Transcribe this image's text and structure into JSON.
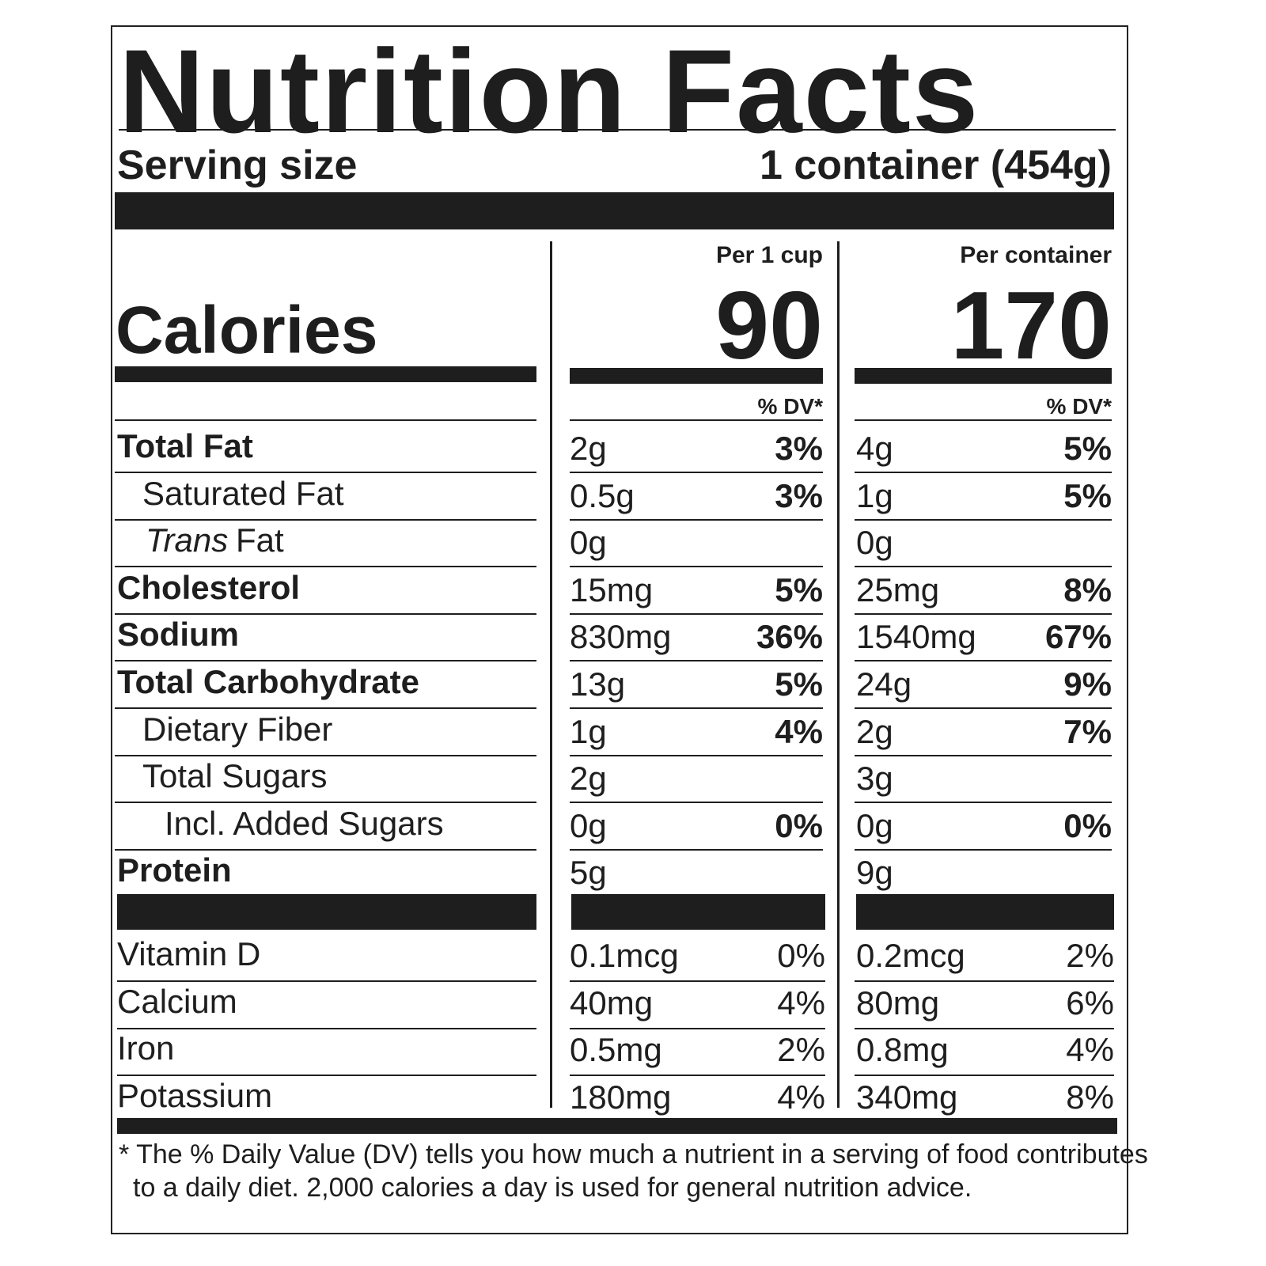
{
  "title": "Nutrition Facts",
  "serving": {
    "label": "Serving size",
    "value": "1 container (454g)"
  },
  "calories_label": "Calories",
  "columns": [
    {
      "header": "Per 1 cup",
      "calories": 90,
      "dv_header": "% DV*"
    },
    {
      "header": "Per container",
      "calories": 170,
      "dv_header": "% DV*"
    }
  ],
  "nutrients": [
    {
      "label": "Total Fat",
      "bold": true,
      "indent": 0,
      "values": [
        [
          "2g",
          "3%"
        ],
        [
          "4g",
          "5%"
        ]
      ]
    },
    {
      "label": "Saturated Fat",
      "bold": false,
      "indent": 1,
      "values": [
        [
          "0.5g",
          "3%"
        ],
        [
          "1g",
          "5%"
        ]
      ]
    },
    {
      "label": {
        "italic": "Trans",
        "text": "Fat"
      },
      "bold": false,
      "indent": 1,
      "values": [
        [
          "0g",
          null
        ],
        [
          "0g",
          null
        ]
      ]
    },
    {
      "label": "Cholesterol",
      "bold": true,
      "indent": 0,
      "values": [
        [
          "15mg",
          "5%"
        ],
        [
          "25mg",
          "8%"
        ]
      ]
    },
    {
      "label": "Sodium",
      "bold": true,
      "indent": 0,
      "values": [
        [
          "830mg",
          "36%"
        ],
        [
          "1540mg",
          "67%"
        ]
      ]
    },
    {
      "label": "Total Carbohydrate",
      "bold": true,
      "indent": 0,
      "values": [
        [
          "13g",
          "5%"
        ],
        [
          "24g",
          "9%"
        ]
      ]
    },
    {
      "label": "Dietary Fiber",
      "bold": false,
      "indent": 1,
      "values": [
        [
          "1g",
          "4%"
        ],
        [
          "2g",
          "7%"
        ]
      ]
    },
    {
      "label": "Total Sugars",
      "bold": false,
      "indent": 1,
      "values": [
        [
          "2g",
          null
        ],
        [
          "3g",
          null
        ]
      ]
    },
    {
      "label": "Incl. Added Sugars",
      "bold": false,
      "indent": 2,
      "values": [
        [
          "0g",
          "0%"
        ],
        [
          "0g",
          "0%"
        ]
      ]
    },
    {
      "label": "Protein",
      "bold": true,
      "indent": 0,
      "values": [
        [
          "5g",
          null
        ],
        [
          "9g",
          null
        ]
      ]
    }
  ],
  "vitamins": [
    {
      "label": "Vitamin D",
      "values": [
        [
          "0.1mcg",
          "0%"
        ],
        [
          "0.2mcg",
          "2%"
        ]
      ]
    },
    {
      "label": "Calcium",
      "values": [
        [
          "40mg",
          "4%"
        ],
        [
          "80mg",
          "6%"
        ]
      ]
    },
    {
      "label": "Iron",
      "values": [
        [
          "0.5mg",
          "2%"
        ],
        [
          "0.8mg",
          "4%"
        ]
      ]
    },
    {
      "label": "Potassium",
      "values": [
        [
          "180mg",
          "4%"
        ],
        [
          "340mg",
          "8%"
        ]
      ]
    }
  ],
  "footnote": [
    "* The % Daily Value (DV) tells you how much a nutrient in a serving of food contributes",
    "to a daily diet. 2,000 calories a day is used for general nutrition advice."
  ]
}
